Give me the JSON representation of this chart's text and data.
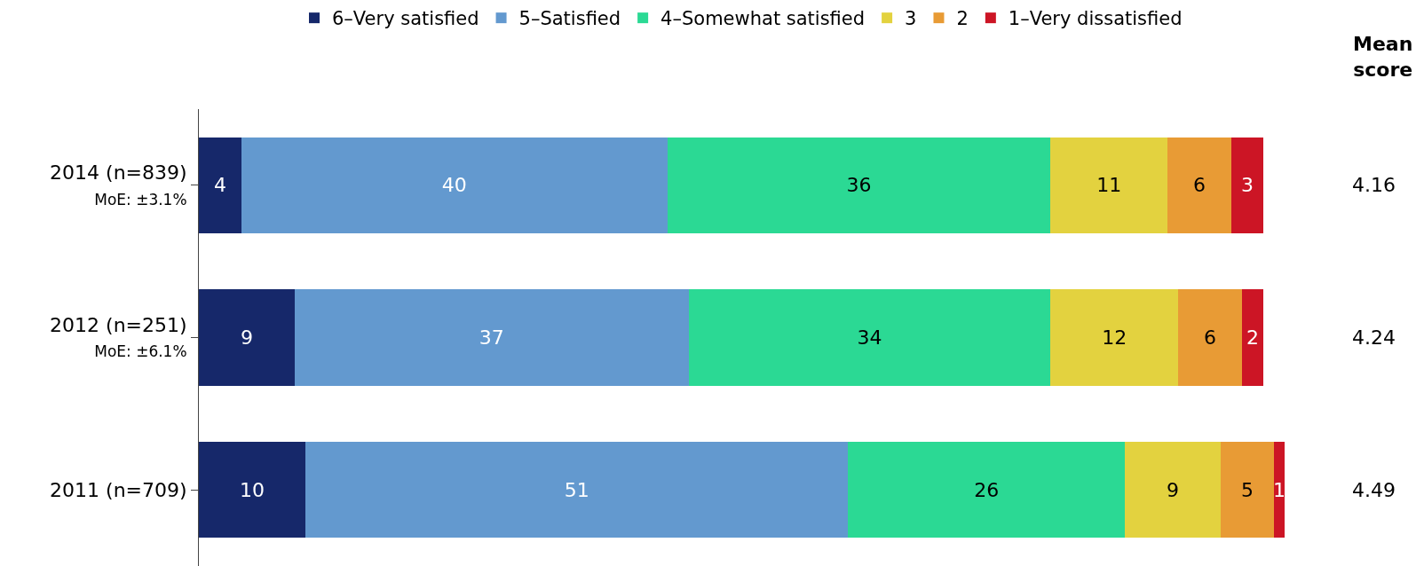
{
  "chart_data": {
    "type": "bar",
    "orientation": "horizontal",
    "stacked": true,
    "data_labels": true,
    "legend": "top",
    "tick_labels": "y",
    "categories": [
      "2014 (n=839)\nMoE: ±3.1%",
      "2012 (n=251)\nMoE: ±6.1%",
      "2011 (n=709)"
    ],
    "series": [
      {
        "name": "6–Very satisfied",
        "color": "#16286a",
        "values": [
          4,
          9,
          10
        ]
      },
      {
        "name": "5–Satisfied",
        "color": "#6399cf",
        "values": [
          40,
          37,
          51
        ]
      },
      {
        "name": "4–Somewhat satisfied",
        "color": "#2bd994",
        "values": [
          36,
          34,
          26
        ]
      },
      {
        "name": "3",
        "color": "#e3d23f",
        "values": [
          11,
          12,
          9
        ]
      },
      {
        "name": "2",
        "color": "#e89b35",
        "values": [
          6,
          6,
          5
        ]
      },
      {
        "name": "1–Very dissatisfied",
        "color": "#cc1525",
        "values": [
          3,
          2,
          1
        ]
      }
    ],
    "annotations": [
      "Mean\nscore",
      "4.16",
      "4.24",
      "4.49"
    ]
  }
}
